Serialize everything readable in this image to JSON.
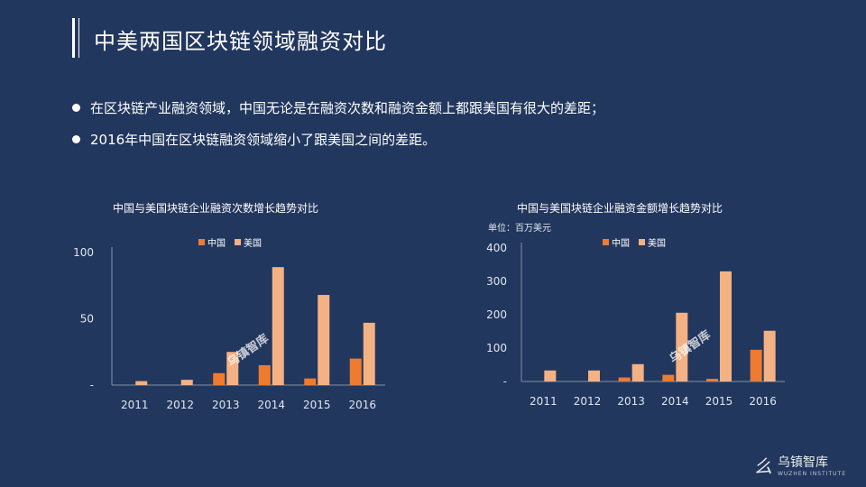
{
  "header": {
    "title": "中美两国区块链领域融资对比"
  },
  "bullets": [
    "在区块链产业融资领域，中国无论是在融资次数和融资金额上都跟美国有很大的差距；",
    "2016年中国在区块链融资领域缩小了跟美国之间的差距。"
  ],
  "colors": {
    "china": "#ee7b30",
    "usa": "#f4b183",
    "axis": "#8090a8",
    "background": "#22375e"
  },
  "chart_data": [
    {
      "type": "bar",
      "title": "中国与美国块链企业融资次数增长趋势对比",
      "unit": "",
      "categories": [
        "2011",
        "2012",
        "2013",
        "2014",
        "2015",
        "2016"
      ],
      "series": [
        {
          "name": "中国",
          "values": [
            0,
            0,
            9,
            15,
            5,
            20
          ]
        },
        {
          "name": "美国",
          "values": [
            3,
            4,
            25,
            89,
            68,
            47
          ]
        }
      ],
      "ylim": [
        0,
        100
      ],
      "yticks": [
        "-",
        "50",
        "100"
      ],
      "legend": "top-center",
      "grid": false
    },
    {
      "type": "bar",
      "title": "中国与美国块链企业融资金额增长趋势对比",
      "unit": "单位：百万美元",
      "categories": [
        "2011",
        "2012",
        "2013",
        "2014",
        "2015",
        "2016"
      ],
      "series": [
        {
          "name": "中国",
          "values": [
            0,
            0,
            12,
            20,
            8,
            95
          ]
        },
        {
          "name": "美国",
          "values": [
            33,
            33,
            52,
            206,
            330,
            152
          ]
        }
      ],
      "ylim": [
        0,
        400
      ],
      "yticks": [
        "-",
        "100",
        "200",
        "300",
        "400"
      ],
      "legend": "top-center",
      "grid": false
    }
  ],
  "watermark": "乌镇智库",
  "logo": {
    "name": "乌镇智库",
    "sub": "WUZHEN INSTITUTE"
  }
}
